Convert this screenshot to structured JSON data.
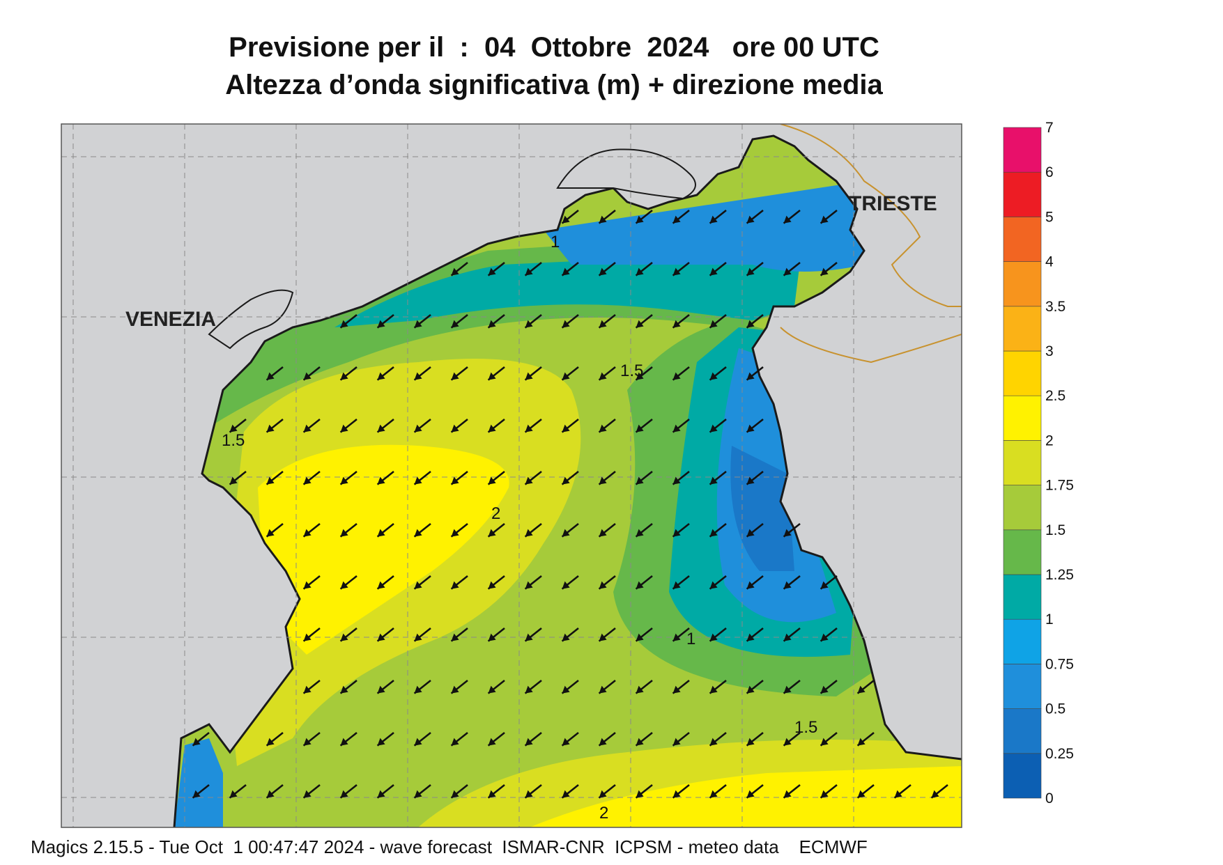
{
  "header": {
    "title_line1": "Previsione per il  :  04  Ottobre  2024   ore 00 UTC",
    "title_line2": "Altezza d’onda significativa (m) + direzione media"
  },
  "places": [
    {
      "name": "VENEZIA",
      "key": "venezia"
    },
    {
      "name": "TRIESTE",
      "key": "trieste"
    }
  ],
  "contour_labels": [
    "1",
    "1.5",
    "1.5",
    "2",
    "1",
    "1.5",
    "2"
  ],
  "colorbar": {
    "levels": [
      "0",
      "0.25",
      "0.5",
      "0.75",
      "1",
      "1.25",
      "1.5",
      "1.75",
      "2",
      "2.5",
      "3",
      "3.5",
      "4",
      "5",
      "6",
      "7"
    ],
    "colors": [
      "#0c5fb3",
      "#1a78c8",
      "#1f8fdb",
      "#0fa3e6",
      "#00aaa5",
      "#66b84a",
      "#a6cb3a",
      "#d9de21",
      "#fff200",
      "#ffd400",
      "#fbb216",
      "#f7941d",
      "#f26522",
      "#ed1c24",
      "#e8106a"
    ]
  },
  "wave_field": {
    "direction": "SW (from NE)",
    "max_height_m": "2",
    "min_height_m": "0.5"
  },
  "colors": {
    "land": "#d1d2d4",
    "coast": "#1a1a1a",
    "border": "#c8922e",
    "arrow": "#111111"
  },
  "footer": {
    "text": "Magics 2.15.5 - Tue Oct  1 00:47:47 2024 - wave forecast  ISMAR-CNR  ICPSM - meteo data    ECMWF"
  }
}
